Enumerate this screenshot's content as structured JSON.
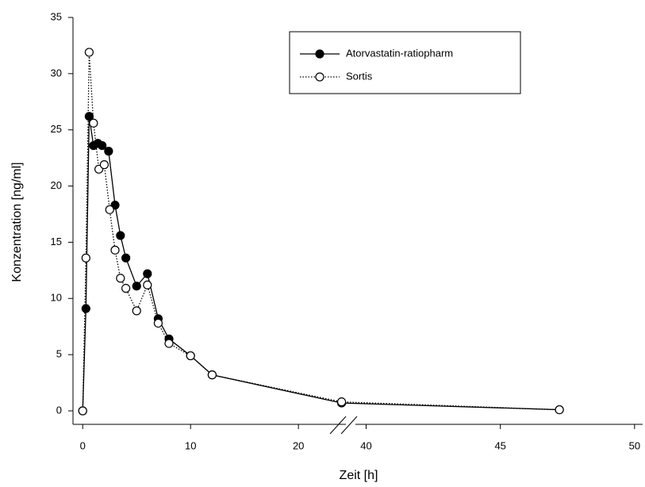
{
  "chart_data": {
    "type": "line",
    "xlabel": "Zeit [h]",
    "ylabel": "Konzentration [ng/ml]",
    "xlim": [
      [
        -0.9,
        24.4
      ],
      [
        39.6,
        50.3
      ]
    ],
    "xticks": [
      0,
      10,
      20,
      40,
      45,
      50
    ],
    "ylim": [
      -1.2,
      35
    ],
    "yticks": [
      0,
      5,
      10,
      15,
      20,
      25,
      30,
      35
    ],
    "legend": "top-right",
    "series": [
      {
        "name": "Atorvastatin-ratiopharm",
        "color": "#000000",
        "marker": "filled",
        "linestyle": "solid",
        "x": [
          0,
          0.3,
          0.6,
          1,
          1.4,
          1.8,
          2.4,
          3,
          3.5,
          4,
          5,
          6,
          7,
          8,
          10,
          12,
          24,
          47.2
        ],
        "values": [
          0,
          9.1,
          26.2,
          23.6,
          23.8,
          23.6,
          23.1,
          18.3,
          15.6,
          13.6,
          11.1,
          12.2,
          8.2,
          6.4,
          4.9,
          3.2,
          0.7,
          0.1
        ]
      },
      {
        "name": "Sortis",
        "color": "#000000",
        "marker": "open",
        "linestyle": "dotted",
        "x": [
          0,
          0.3,
          0.6,
          1,
          1.5,
          2,
          2.5,
          3,
          3.5,
          4,
          5,
          6,
          7,
          8,
          10,
          12,
          24,
          47.2
        ],
        "values": [
          0,
          13.6,
          31.9,
          25.6,
          21.5,
          21.9,
          17.9,
          14.3,
          11.8,
          10.9,
          8.9,
          11.2,
          7.8,
          6.0,
          4.9,
          3.2,
          0.8,
          0.1
        ]
      }
    ]
  }
}
